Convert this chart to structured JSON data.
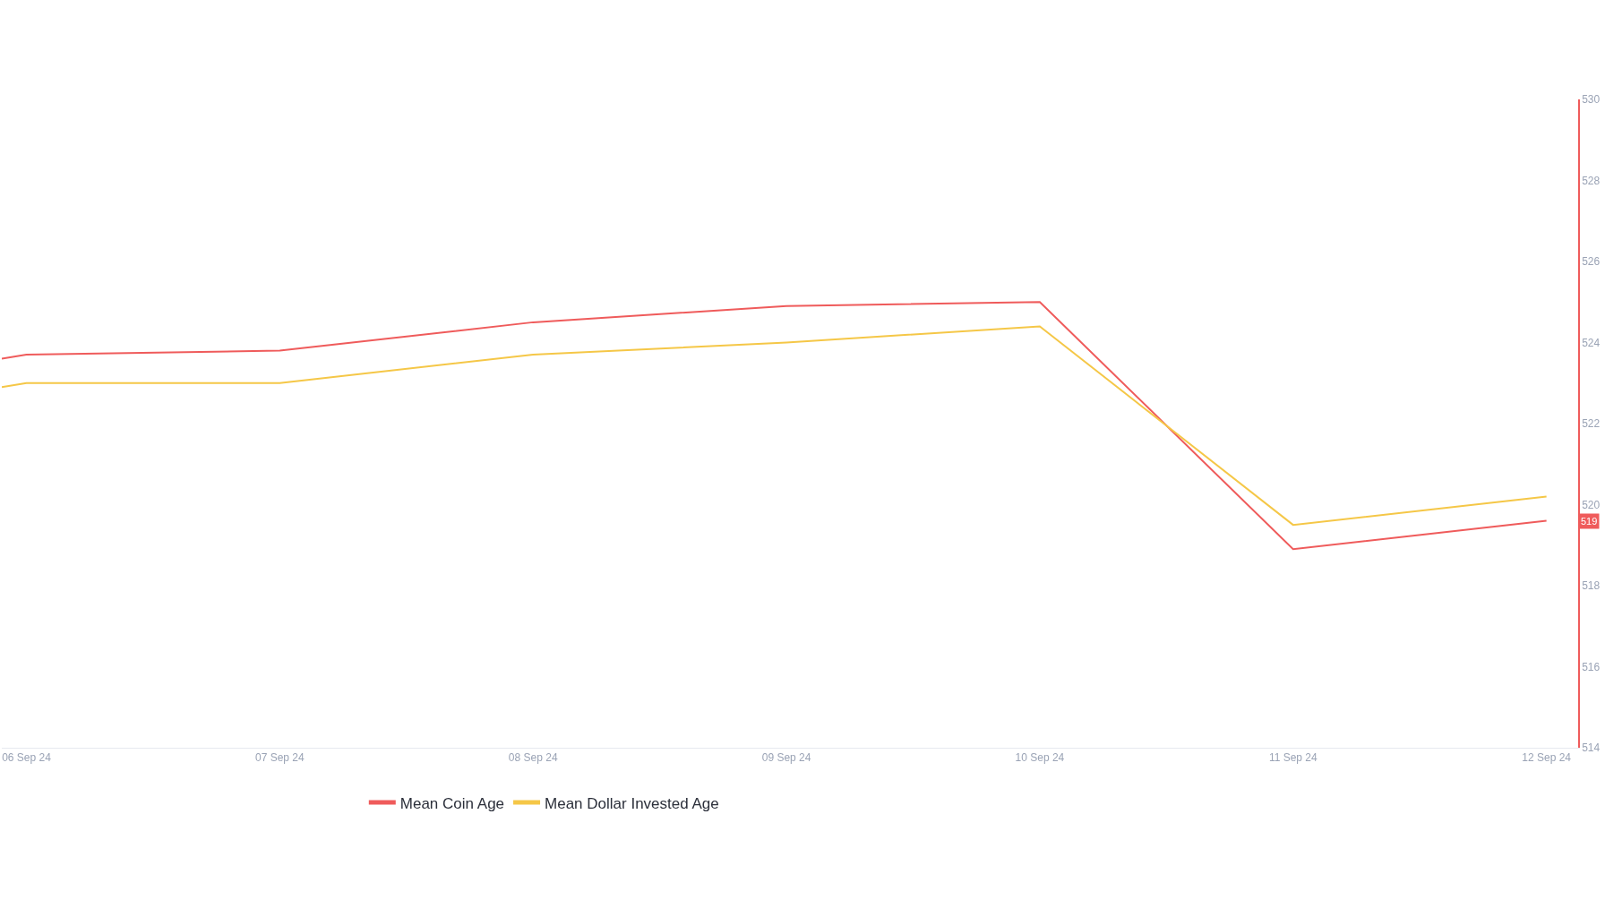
{
  "chart_data": {
    "type": "line",
    "x": [
      "--09-05T21:40",
      "--09-06",
      "--09-07",
      "--09-08",
      "--09-09",
      "--09-10",
      "--09-11",
      "--09-12"
    ],
    "series": [
      {
        "name": "Mean Coin Age",
        "color": "#ef5b5b",
        "values": [
          523.6,
          523.7,
          523.8,
          524.5,
          524.9,
          525.0,
          518.9,
          519.6
        ]
      },
      {
        "name": "Mean Dollar Invested Age",
        "color": "#f5c747",
        "values": [
          522.9,
          523.0,
          523.0,
          523.7,
          524.0,
          524.4,
          519.5,
          520.2
        ]
      }
    ],
    "xlim": [
      "--09-05T21:40",
      "--09-12T03:00"
    ],
    "xticks": [
      {
        "value": "--09-06",
        "label": "06 Sep 24"
      },
      {
        "value": "--09-07",
        "label": "07 Sep 24"
      },
      {
        "value": "--09-08",
        "label": "08 Sep 24"
      },
      {
        "value": "--09-09",
        "label": "09 Sep 24"
      },
      {
        "value": "--09-10",
        "label": "10 Sep 24"
      },
      {
        "value": "--09-11",
        "label": "11 Sep 24"
      },
      {
        "value": "--09-12",
        "label": "12 Sep 24"
      }
    ],
    "ylim": [
      514,
      530
    ],
    "yticks": [
      514,
      516,
      518,
      520,
      522,
      524,
      526,
      528,
      530
    ],
    "annotations": [
      "519"
    ],
    "legend": "bottom",
    "marker": "none",
    "line_style": "solid"
  }
}
